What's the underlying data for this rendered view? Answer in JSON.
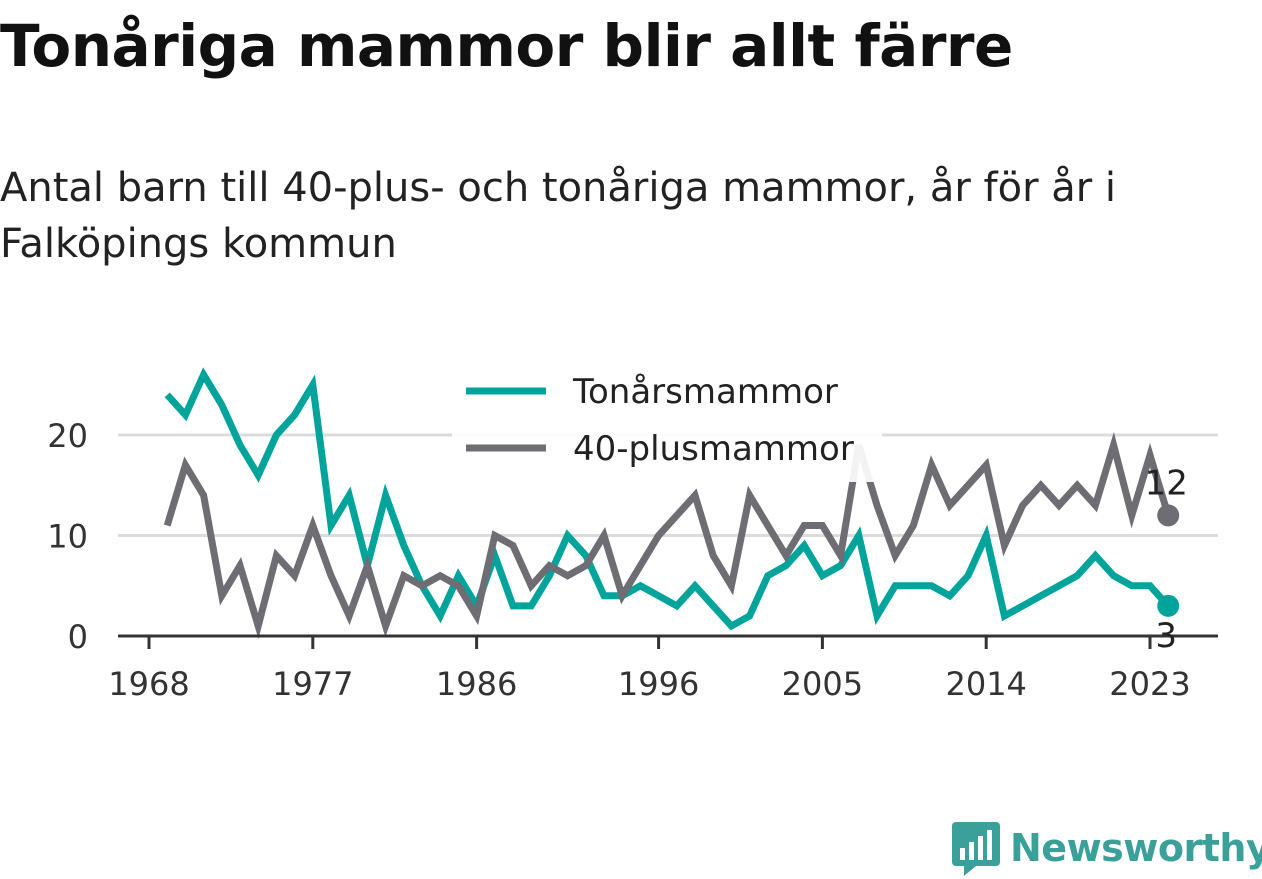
{
  "title": "Tonåriga mammor blir allt färre",
  "subtitle": "Antal barn till 40-plus- och tonåriga mammor, år för år i Falköpings kommun",
  "brand": "Newsworthy",
  "chart_data": {
    "type": "line",
    "x": [
      1969,
      1970,
      1971,
      1972,
      1973,
      1974,
      1975,
      1976,
      1977,
      1978,
      1979,
      1980,
      1981,
      1982,
      1983,
      1984,
      1985,
      1986,
      1987,
      1988,
      1989,
      1990,
      1991,
      1992,
      1993,
      1994,
      1995,
      1996,
      1997,
      1998,
      1999,
      2000,
      2001,
      2002,
      2003,
      2004,
      2005,
      2006,
      2007,
      2008,
      2009,
      2010,
      2011,
      2012,
      2013,
      2014,
      2015,
      2016,
      2017,
      2018,
      2019,
      2020,
      2021,
      2022,
      2023,
      2024
    ],
    "series": [
      {
        "name": "Tonårsmammor",
        "color": "#00a49a",
        "values": [
          24,
          22,
          26,
          23,
          19,
          16,
          20,
          22,
          25,
          11,
          14,
          7,
          14,
          9,
          5,
          2,
          6,
          3,
          8,
          3,
          3,
          6,
          10,
          8,
          4,
          4,
          5,
          4,
          3,
          5,
          3,
          1,
          2,
          6,
          7,
          9,
          6,
          7,
          10,
          2,
          5,
          5,
          5,
          4,
          6,
          10,
          2,
          3,
          4,
          5,
          6,
          8,
          6,
          5,
          5,
          3
        ],
        "end_label": "3"
      },
      {
        "name": "40-plusmammor",
        "color": "#6e6d74",
        "values": [
          11,
          17,
          14,
          4,
          7,
          1,
          8,
          6,
          11,
          6,
          2,
          7,
          1,
          6,
          5,
          6,
          5,
          2,
          10,
          9,
          5,
          7,
          6,
          7,
          10,
          4,
          7,
          10,
          12,
          14,
          8,
          5,
          14,
          11,
          8,
          11,
          11,
          8,
          19,
          13,
          8,
          11,
          17,
          13,
          15,
          17,
          9,
          13,
          15,
          13,
          15,
          13,
          19,
          12,
          18,
          12
        ],
        "end_label": "12"
      }
    ],
    "x_ticks": [
      "1968",
      "1977",
      "1986",
      "1996",
      "2005",
      "2014",
      "2023"
    ],
    "y_ticks": [
      "0",
      "10",
      "20"
    ],
    "ylim": [
      0,
      26
    ],
    "grid": true,
    "legend_position": "top-center"
  }
}
